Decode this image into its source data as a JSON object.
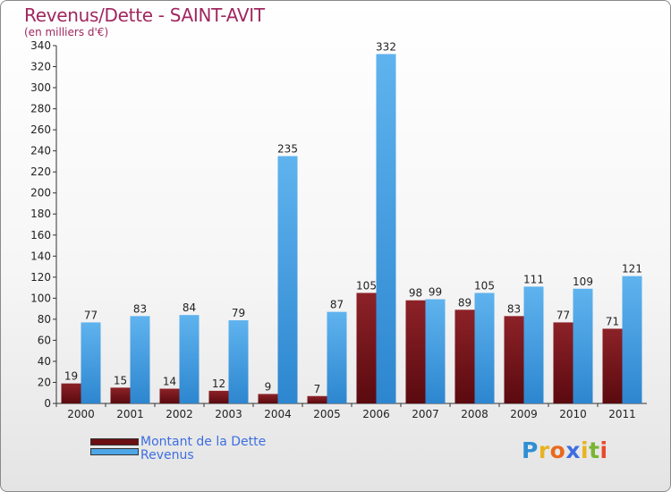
{
  "header": {
    "title": "Revenus/Dette - SAINT-AVIT",
    "subtitle": "(en milliers d'€)"
  },
  "chart_data": {
    "type": "bar",
    "title": "Revenus/Dette - SAINT-AVIT",
    "ylabel": "(en milliers d'€)",
    "xlabel": "",
    "categories": [
      "2000",
      "2001",
      "2002",
      "2003",
      "2004",
      "2005",
      "2006",
      "2007",
      "2008",
      "2009",
      "2010",
      "2011"
    ],
    "series": [
      {
        "name": "Montant de la Dette",
        "color": "#7a1a1f",
        "values": [
          19,
          15,
          14,
          12,
          9,
          7,
          105,
          98,
          89,
          83,
          77,
          71
        ]
      },
      {
        "name": "Revenus",
        "color": "#4ea6e6",
        "values": [
          77,
          83,
          84,
          79,
          235,
          87,
          332,
          99,
          105,
          111,
          109,
          121
        ]
      }
    ],
    "ylim": [
      0,
      340
    ],
    "yticks": [
      0,
      20,
      40,
      60,
      80,
      100,
      120,
      140,
      160,
      180,
      200,
      220,
      240,
      260,
      280,
      300,
      320,
      340
    ],
    "grid": false,
    "legend": "bottom-left"
  },
  "legend": {
    "items": [
      {
        "label": "Montant de la Dette",
        "color": "#6b0f14"
      },
      {
        "label": "Revenus",
        "color": "#4ea6e6"
      }
    ]
  },
  "branding": {
    "logo_text": "Proxiti",
    "letters": [
      {
        "char": "P",
        "color": "#2f8fd4"
      },
      {
        "char": "r",
        "color": "#e8b320"
      },
      {
        "char": "o",
        "color": "#e86a1f"
      },
      {
        "char": "x",
        "color": "#3d6ee0"
      },
      {
        "char": "i",
        "color": "#e8b320"
      },
      {
        "char": "t",
        "color": "#7ab532"
      },
      {
        "char": "i",
        "color": "#e84a2a"
      }
    ]
  }
}
